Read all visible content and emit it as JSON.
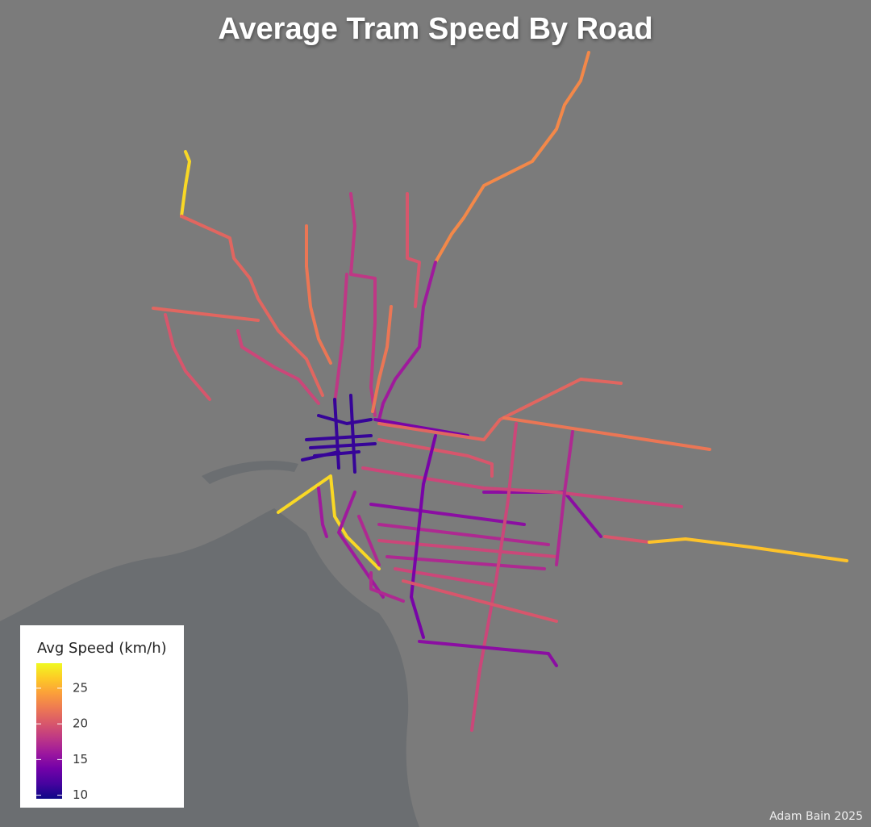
{
  "title": "Average Tram Speed By Road",
  "legend": {
    "title": "Avg Speed (km/h)",
    "lim": [
      9.5,
      28.5
    ],
    "ticks": [
      10,
      15,
      20,
      25
    ]
  },
  "route_speeds": [
    27,
    21,
    23,
    16,
    20,
    18,
    22,
    22,
    21,
    20,
    19,
    18,
    11,
    11,
    11,
    11,
    11,
    11,
    11,
    27,
    14,
    21,
    22,
    15,
    20,
    26,
    20,
    19,
    15,
    17,
    19,
    17,
    19,
    14,
    19,
    17,
    15,
    20,
    16,
    17,
    16,
    17
  ],
  "credit": "Adam Bain 2025"
}
